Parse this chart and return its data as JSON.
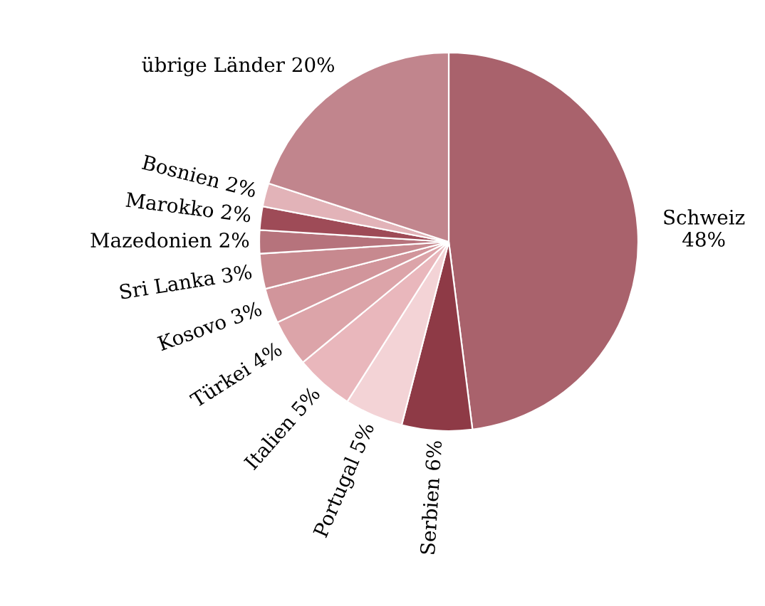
{
  "chart_data": {
    "type": "pie",
    "categories": [
      "Schweiz",
      "Serbien",
      "Portugal",
      "Italien",
      "Türkei",
      "Kosovo",
      "Sri Lanka",
      "Mazedonien",
      "Marokko",
      "Bosnien",
      "übrige Länder"
    ],
    "values": [
      48,
      6,
      5,
      5,
      4,
      3,
      3,
      2,
      2,
      2,
      20
    ],
    "colors": [
      "#a9626c",
      "#8e3a46",
      "#f3d3d6",
      "#e9b7bc",
      "#dca4a9",
      "#d1959b",
      "#c7898f",
      "#b6737c",
      "#9e4b57",
      "#e2b3b8",
      "#c1858d"
    ],
    "value_labels": [
      "48%",
      "6%",
      "5%",
      "5%",
      "4%",
      "3%",
      "3%",
      "2%",
      "2%",
      "2%",
      "20%"
    ]
  }
}
